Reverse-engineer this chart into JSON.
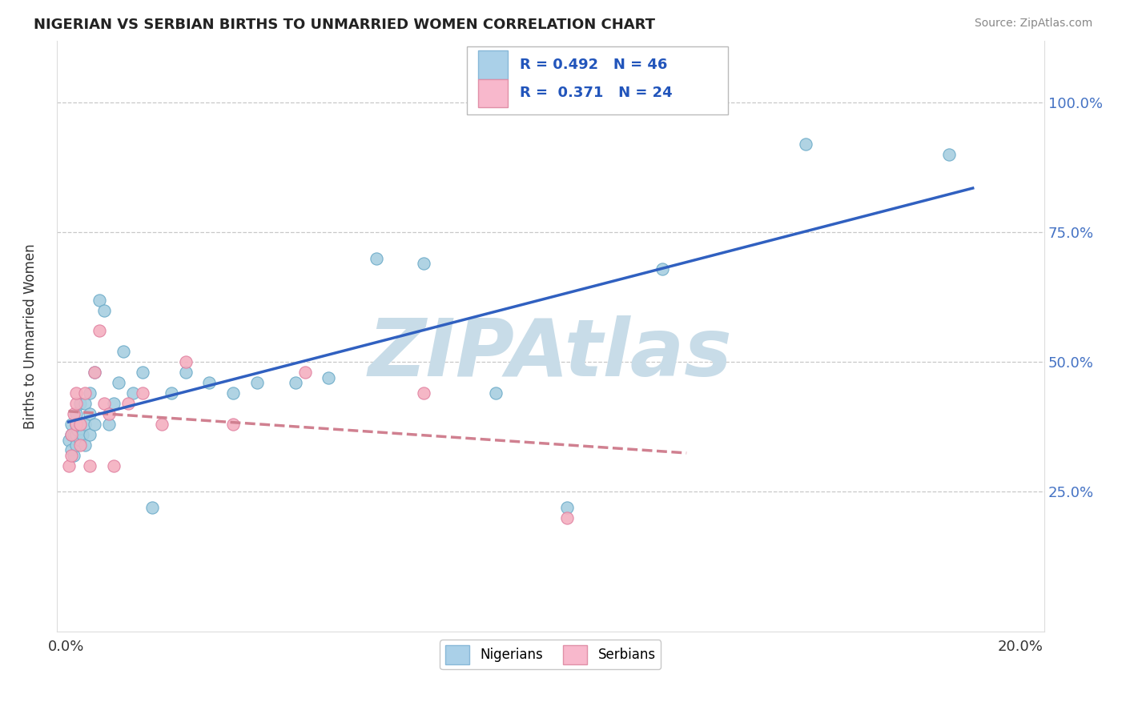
{
  "title": "NIGERIAN VS SERBIAN BIRTHS TO UNMARRIED WOMEN CORRELATION CHART",
  "source": "Source: ZipAtlas.com",
  "ylabel": "Births to Unmarried Women",
  "y_ticks_right": [
    "25.0%",
    "50.0%",
    "75.0%",
    "100.0%"
  ],
  "y_tick_vals": [
    0.25,
    0.5,
    0.75,
    1.0
  ],
  "xlim": [
    -0.002,
    0.205
  ],
  "ylim": [
    -0.02,
    1.12
  ],
  "R_nigerian": 0.492,
  "N_nigerian": 46,
  "R_serbian": 0.371,
  "N_serbian": 24,
  "nigerian_scatter_color": "#a8cfe0",
  "serbian_scatter_color": "#f4b0c0",
  "nigerian_edge_color": "#6aaac8",
  "serbian_edge_color": "#e080a0",
  "trend_nigerian_color": "#3060c0",
  "trend_serbian_color": "#d08090",
  "watermark": "ZIPAtlas",
  "watermark_color": "#c8dce8",
  "legend_label_nigerian": "Nigerians",
  "legend_label_serbian": "Serbians",
  "nigerian_x": [
    0.0005,
    0.001,
    0.001,
    0.001,
    0.0015,
    0.0015,
    0.002,
    0.002,
    0.002,
    0.002,
    0.0025,
    0.003,
    0.003,
    0.003,
    0.0035,
    0.004,
    0.004,
    0.004,
    0.005,
    0.005,
    0.005,
    0.006,
    0.006,
    0.007,
    0.008,
    0.009,
    0.01,
    0.011,
    0.012,
    0.014,
    0.016,
    0.018,
    0.022,
    0.025,
    0.03,
    0.035,
    0.04,
    0.048,
    0.055,
    0.065,
    0.075,
    0.09,
    0.105,
    0.125,
    0.155,
    0.185
  ],
  "nigerian_y": [
    0.35,
    0.33,
    0.36,
    0.38,
    0.32,
    0.36,
    0.34,
    0.36,
    0.38,
    0.4,
    0.37,
    0.35,
    0.38,
    0.42,
    0.36,
    0.34,
    0.38,
    0.42,
    0.36,
    0.4,
    0.44,
    0.38,
    0.48,
    0.62,
    0.6,
    0.38,
    0.42,
    0.46,
    0.52,
    0.44,
    0.48,
    0.22,
    0.44,
    0.48,
    0.46,
    0.44,
    0.46,
    0.46,
    0.47,
    0.7,
    0.69,
    0.44,
    0.22,
    0.68,
    0.92,
    0.9
  ],
  "serbian_x": [
    0.0005,
    0.001,
    0.001,
    0.0015,
    0.002,
    0.002,
    0.002,
    0.003,
    0.003,
    0.004,
    0.005,
    0.006,
    0.007,
    0.008,
    0.009,
    0.01,
    0.013,
    0.016,
    0.02,
    0.025,
    0.035,
    0.05,
    0.075,
    0.105
  ],
  "serbian_y": [
    0.3,
    0.32,
    0.36,
    0.4,
    0.38,
    0.42,
    0.44,
    0.34,
    0.38,
    0.44,
    0.3,
    0.48,
    0.56,
    0.42,
    0.4,
    0.3,
    0.42,
    0.44,
    0.38,
    0.5,
    0.38,
    0.48,
    0.44,
    0.2
  ]
}
